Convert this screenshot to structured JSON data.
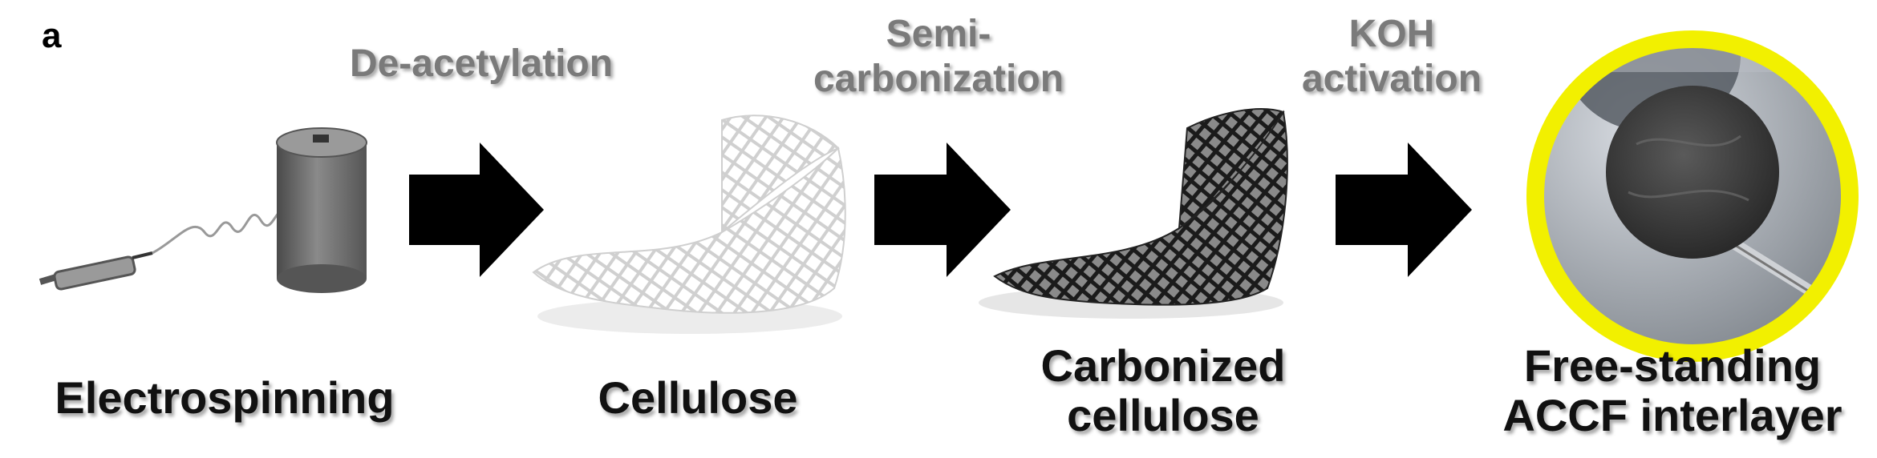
{
  "panel_letter": "a",
  "processes": {
    "p1": {
      "line1": "De-acetylation"
    },
    "p2": {
      "line1": "Semi-",
      "line2": "carbonization"
    },
    "p3": {
      "line1": "KOH",
      "line2": "activation"
    }
  },
  "steps": {
    "s1": {
      "line1": "Electrospinning"
    },
    "s2": {
      "line1": "Cellulose"
    },
    "s3": {
      "line1": "Carbonized",
      "line2": "cellulose"
    },
    "s4": {
      "line1": "Free-standing",
      "line2": "ACCF interlayer"
    }
  },
  "colors": {
    "arrow": "#000000",
    "ring": "#f2f000",
    "white_mesh": "#e8e8e8",
    "dark_mesh": "#222222",
    "collector": "#6e6e6e"
  }
}
